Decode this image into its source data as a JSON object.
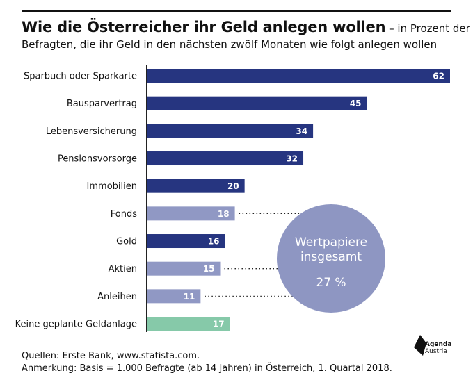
{
  "header": {
    "title": "Wie die Österreicher ihr Geld anlegen wollen",
    "title_suffix": " – in Prozent der",
    "subtitle": "Befragten, die ihr Geld in den nächsten zwölf Monaten wie folgt anlegen wollen"
  },
  "chart_data": {
    "type": "bar",
    "orientation": "horizontal",
    "categories": [
      "Sparbuch oder Sparkarte",
      "Bausparvertrag",
      "Lebensversicherung",
      "Pensionsvorsorge",
      "Immobilien",
      "Fonds",
      "Gold",
      "Aktien",
      "Anleihen",
      "Keine geplante Geldanlage"
    ],
    "values": [
      62,
      45,
      34,
      32,
      20,
      18,
      16,
      15,
      11,
      17
    ],
    "value_labels": [
      "62",
      "45",
      "34",
      "32",
      "20",
      "18",
      "16",
      "15",
      "11",
      "17"
    ],
    "bar_colors": [
      "#263580",
      "#263580",
      "#263580",
      "#263580",
      "#263580",
      "#9098c4",
      "#263580",
      "#9098c4",
      "#9098c4",
      "#86c9a9"
    ],
    "grid": false,
    "xlim": [
      0,
      62
    ],
    "callout": {
      "line1": "Wertpapiere",
      "line2": "insgesamt",
      "value": "27 %",
      "color": "#8e96c2",
      "connects": [
        "Fonds",
        "Aktien",
        "Anleihen"
      ]
    }
  },
  "footer": {
    "source": "Quellen: Erste Bank, www.statista.com.",
    "note": "Anmerkung: Basis = 1.000 Befragte (ab 14 Jahren) in Österreich, 1. Quartal 2018."
  },
  "logo": {
    "line1": "Agenda",
    "line2": "Austria",
    "color": "#111111"
  }
}
